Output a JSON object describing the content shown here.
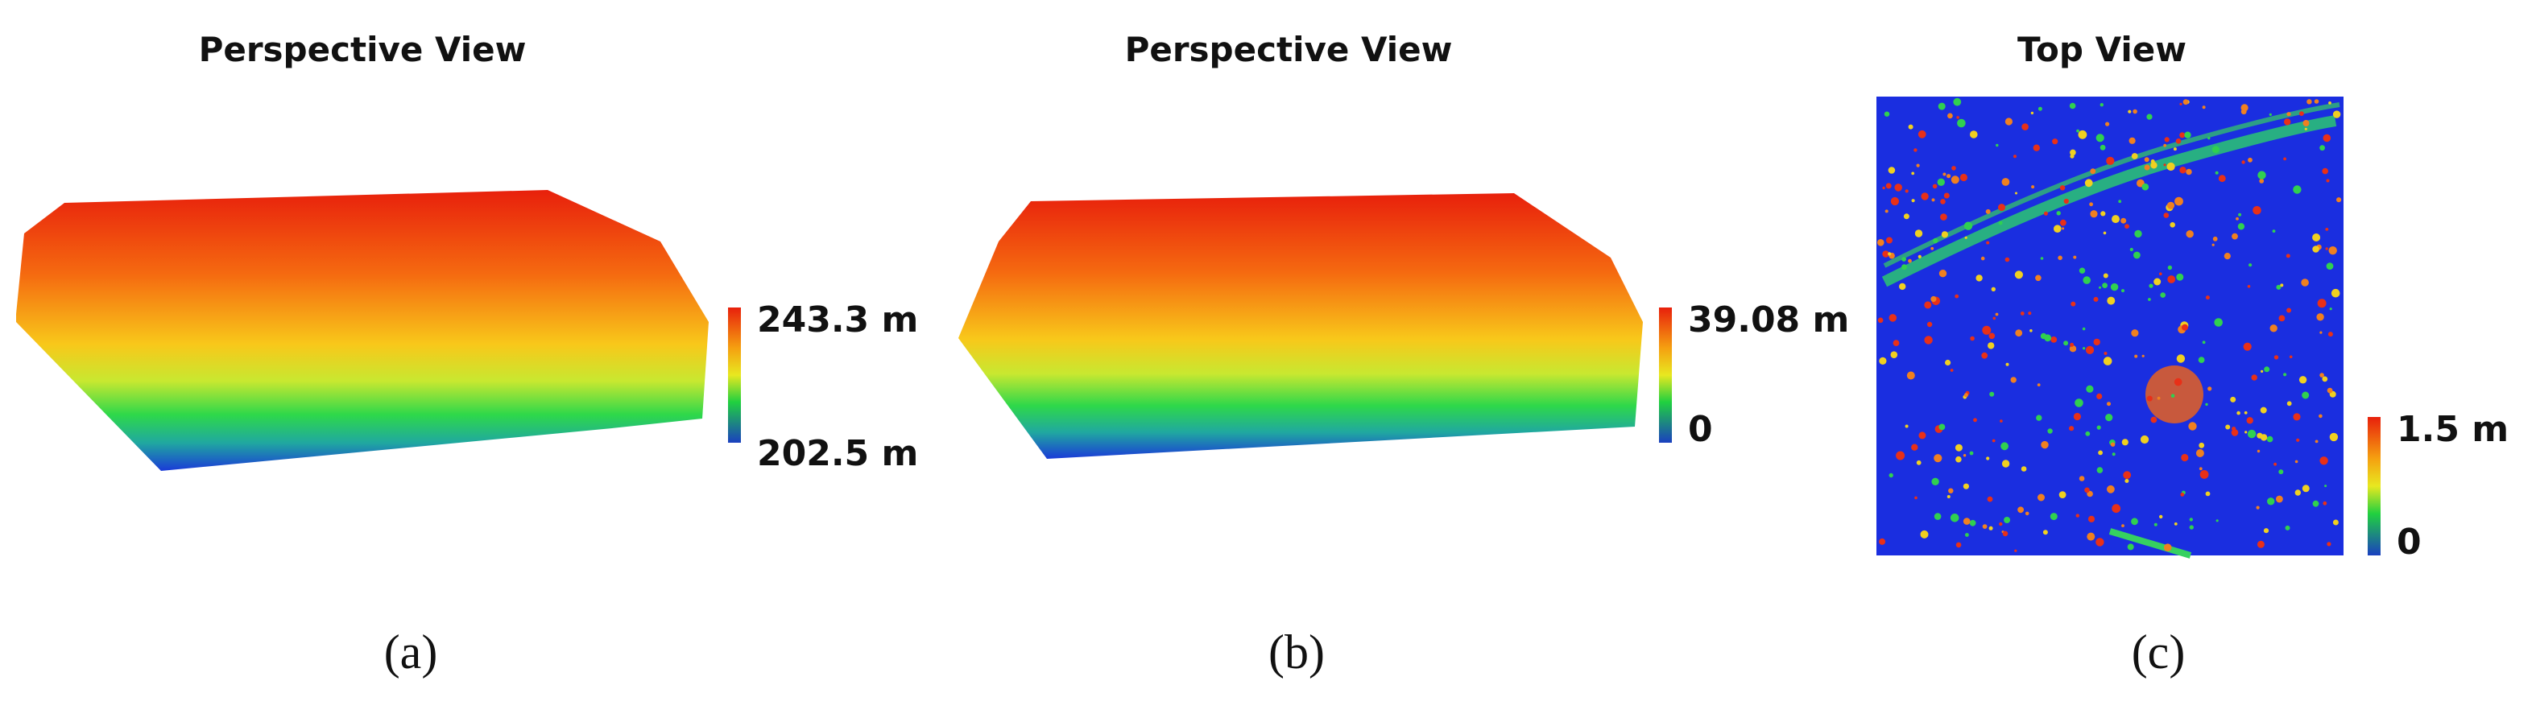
{
  "panels": [
    {
      "title": "Perspective View",
      "colorbar": {
        "max": "243.3 m",
        "min": "202.5 m"
      },
      "caption": "(a)"
    },
    {
      "title": "Perspective View",
      "colorbar": {
        "max": "39.08 m",
        "min": "0"
      },
      "caption": "(b)"
    },
    {
      "title": "Top View",
      "colorbar": {
        "max": "1.5 m",
        "min": "0"
      },
      "caption": "(c)"
    }
  ]
}
